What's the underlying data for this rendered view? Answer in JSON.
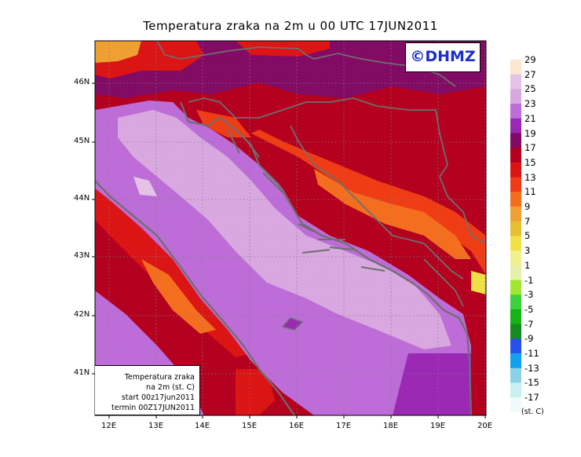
{
  "title": "Temperatura zraka na 2m u 00 UTC 17JUN2011",
  "logo_text": "©DHMZ",
  "infobox": {
    "line1": "Temperatura zraka",
    "line2": "na 2m (st. C)",
    "line3": "start 00z17jun2011",
    "line4": "termin 00Z17JUN2011"
  },
  "lat_ticks": [
    "46N",
    "45N",
    "44N",
    "43N",
    "42N",
    "41N"
  ],
  "lon_ticks": [
    "12E",
    "13E",
    "14E",
    "15E",
    "16E",
    "17E",
    "18E",
    "19E",
    "20E"
  ],
  "colorbar": {
    "unit": "(st. C)",
    "levels": [
      {
        "label": "29",
        "color": "#fbe6d0"
      },
      {
        "label": "27",
        "color": "#e6c3e6"
      },
      {
        "label": "25",
        "color": "#d9a8e0"
      },
      {
        "label": "23",
        "color": "#bd6cd8"
      },
      {
        "label": "21",
        "color": "#9a28b4"
      },
      {
        "label": "19",
        "color": "#820a64"
      },
      {
        "label": "17",
        "color": "#b4001e"
      },
      {
        "label": "15",
        "color": "#dc1414"
      },
      {
        "label": "13",
        "color": "#f03c14"
      },
      {
        "label": "11",
        "color": "#f56e1e"
      },
      {
        "label": "9",
        "color": "#f0a032"
      },
      {
        "label": "7",
        "color": "#e6be32"
      },
      {
        "label": "5",
        "color": "#f0e146"
      },
      {
        "label": "3",
        "color": "#f2f08c"
      },
      {
        "label": "1",
        "color": "#e6f0aa"
      },
      {
        "label": "-1",
        "color": "#a0e632"
      },
      {
        "label": "-3",
        "color": "#3cd23c"
      },
      {
        "label": "-5",
        "color": "#14b414"
      },
      {
        "label": "-7",
        "color": "#148c1e"
      },
      {
        "label": "-9",
        "color": "#2850f0"
      },
      {
        "label": "-11",
        "color": "#14a0f0"
      },
      {
        "label": "-13",
        "color": "#8cd2e6"
      },
      {
        "label": "-15",
        "color": "#c8f0f0"
      },
      {
        "label": "-17",
        "color": "#f0fafa"
      }
    ]
  },
  "colors": {
    "land_base": "#b4001e",
    "sea_base": "#bd6cd8",
    "sea_warm": "#d9a8e0",
    "coast": "#6e6e6e",
    "border": "#6e6e6e"
  }
}
